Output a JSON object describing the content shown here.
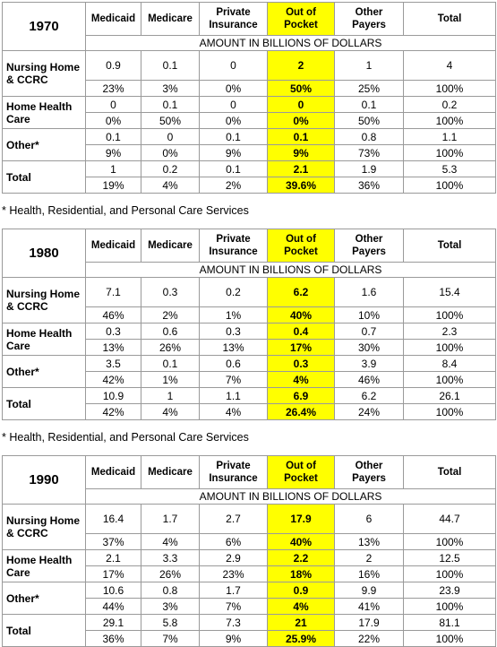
{
  "tables": [
    {
      "year": "1970",
      "headers": [
        "Medicaid",
        "Medicare",
        "Private Insurance",
        "Out of Pocket",
        "Other Payers",
        "Total"
      ],
      "unit": "AMOUNT IN BILLIONS OF DOLLARS",
      "rows": [
        {
          "label": "Nursing Home & CCRC",
          "amounts": [
            "0.9",
            "0.1",
            "0",
            "2",
            "1",
            "4"
          ],
          "percents": [
            "23%",
            "3%",
            "0%",
            "50%",
            "25%",
            "100%"
          ]
        },
        {
          "label": "Home Health Care",
          "amounts": [
            "0",
            "0.1",
            "0",
            "0",
            "0.1",
            "0.2"
          ],
          "percents": [
            "0%",
            "50%",
            "0%",
            "0%",
            "50%",
            "100%"
          ]
        },
        {
          "label": "Other*",
          "amounts": [
            "0.1",
            "0",
            "0.1",
            "0.1",
            "0.8",
            "1.1"
          ],
          "percents": [
            "9%",
            "0%",
            "9%",
            "9%",
            "73%",
            "100%"
          ]
        },
        {
          "label": "Total",
          "amounts": [
            "1",
            "0.2",
            "0.1",
            "2.1",
            "1.9",
            "5.3"
          ],
          "percents": [
            "19%",
            "4%",
            "2%",
            "39.6%",
            "36%",
            "100%"
          ]
        }
      ],
      "footnote": "* Health, Residential, and Personal Care Services"
    },
    {
      "year": "1980",
      "headers": [
        "Medicaid",
        "Medicare",
        "Private Insurance",
        "Out of Pocket",
        "Other Payers",
        "Total"
      ],
      "unit": "AMOUNT IN BILLIONS OF DOLLARS",
      "rows": [
        {
          "label": "Nursing Home & CCRC",
          "amounts": [
            "7.1",
            "0.3",
            "0.2",
            "6.2",
            "1.6",
            "15.4"
          ],
          "percents": [
            "46%",
            "2%",
            "1%",
            "40%",
            "10%",
            "100%"
          ]
        },
        {
          "label": "Home Health Care",
          "amounts": [
            "0.3",
            "0.6",
            "0.3",
            "0.4",
            "0.7",
            "2.3"
          ],
          "percents": [
            "13%",
            "26%",
            "13%",
            "17%",
            "30%",
            "100%"
          ]
        },
        {
          "label": "Other*",
          "amounts": [
            "3.5",
            "0.1",
            "0.6",
            "0.3",
            "3.9",
            "8.4"
          ],
          "percents": [
            "42%",
            "1%",
            "7%",
            "4%",
            "46%",
            "100%"
          ]
        },
        {
          "label": "Total",
          "amounts": [
            "10.9",
            "1",
            "1.1",
            "6.9",
            "6.2",
            "26.1"
          ],
          "percents": [
            "42%",
            "4%",
            "4%",
            "26.4%",
            "24%",
            "100%"
          ]
        }
      ],
      "footnote": "* Health, Residential, and Personal Care Services"
    },
    {
      "year": "1990",
      "headers": [
        "Medicaid",
        "Medicare",
        "Private Insurance",
        "Out of Pocket",
        "Other Payers",
        "Total"
      ],
      "unit": "AMOUNT IN BILLIONS OF DOLLARS",
      "rows": [
        {
          "label": "Nursing Home & CCRC",
          "amounts": [
            "16.4",
            "1.7",
            "2.7",
            "17.9",
            "6",
            "44.7"
          ],
          "percents": [
            "37%",
            "4%",
            "6%",
            "40%",
            "13%",
            "100%"
          ]
        },
        {
          "label": "Home Health Care",
          "amounts": [
            "2.1",
            "3.3",
            "2.9",
            "2.2",
            "2",
            "12.5"
          ],
          "percents": [
            "17%",
            "26%",
            "23%",
            "18%",
            "16%",
            "100%"
          ]
        },
        {
          "label": "Other*",
          "amounts": [
            "10.6",
            "0.8",
            "1.7",
            "0.9",
            "9.9",
            "23.9"
          ],
          "percents": [
            "44%",
            "3%",
            "7%",
            "4%",
            "41%",
            "100%"
          ]
        },
        {
          "label": "Total",
          "amounts": [
            "29.1",
            "5.8",
            "7.3",
            "21",
            "17.9",
            "81.1"
          ],
          "percents": [
            "36%",
            "7%",
            "9%",
            "25.9%",
            "22%",
            "100%"
          ]
        }
      ]
    }
  ]
}
